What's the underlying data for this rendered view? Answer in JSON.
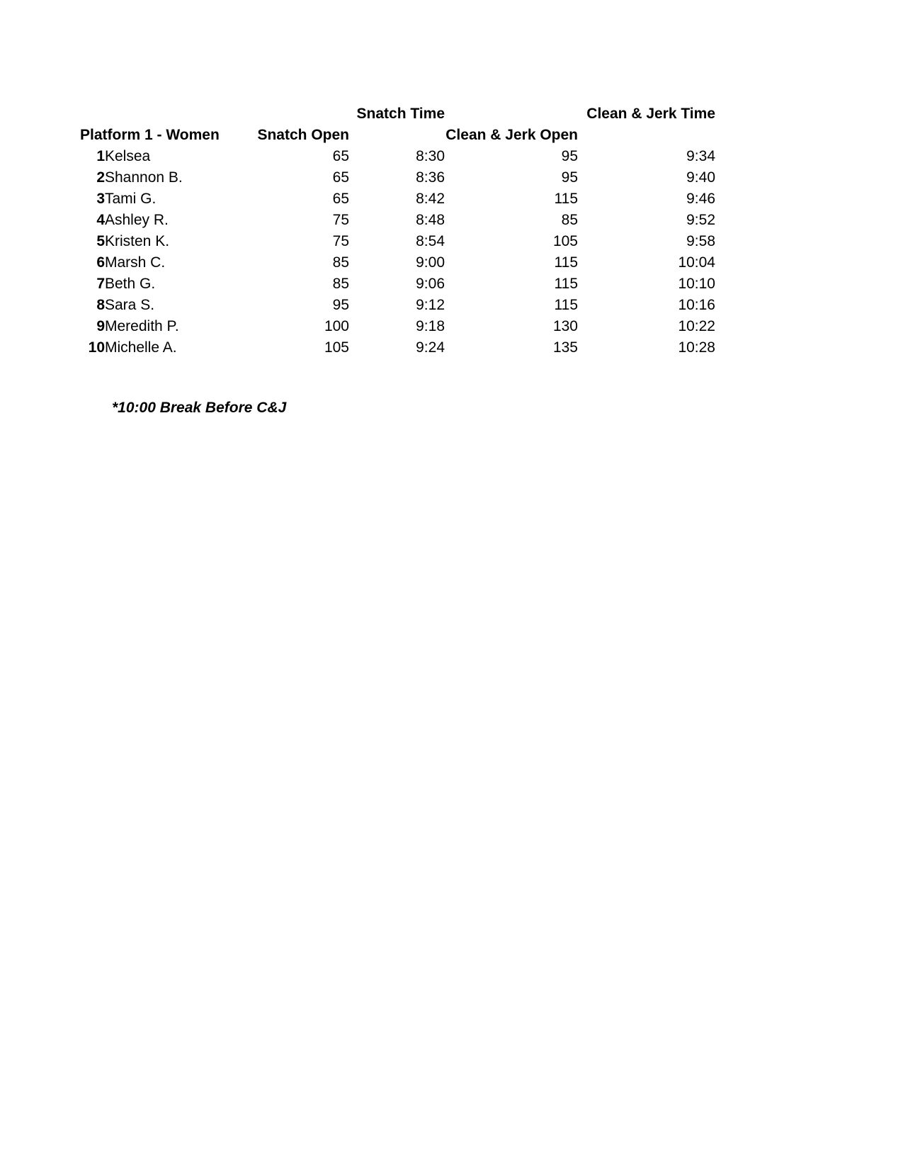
{
  "page": {
    "footnote": "*10:00 Break Before C&J"
  },
  "table": {
    "group_headers": {
      "snatch_time": "Snatch Time",
      "clean_jerk_time": "Clean & Jerk Time"
    },
    "column_headers": {
      "platform": "Platform 1 - Women",
      "snatch_open": "Snatch Open",
      "clean_jerk_open": "Clean & Jerk Open"
    },
    "rows": [
      {
        "num": "1",
        "name": "Kelsea",
        "snatch_open": "65",
        "snatch_time": "8:30",
        "cj_open": "95",
        "cj_time": "9:34"
      },
      {
        "num": "2",
        "name": "Shannon B.",
        "snatch_open": "65",
        "snatch_time": "8:36",
        "cj_open": "95",
        "cj_time": "9:40"
      },
      {
        "num": "3",
        "name": "Tami G.",
        "snatch_open": "65",
        "snatch_time": "8:42",
        "cj_open": "115",
        "cj_time": "9:46"
      },
      {
        "num": "4",
        "name": "Ashley R.",
        "snatch_open": "75",
        "snatch_time": "8:48",
        "cj_open": "85",
        "cj_time": "9:52"
      },
      {
        "num": "5",
        "name": "Kristen K.",
        "snatch_open": "75",
        "snatch_time": "8:54",
        "cj_open": "105",
        "cj_time": "9:58"
      },
      {
        "num": "6",
        "name": "Marsh C.",
        "snatch_open": "85",
        "snatch_time": "9:00",
        "cj_open": "115",
        "cj_time": "10:04"
      },
      {
        "num": "7",
        "name": "Beth G.",
        "snatch_open": "85",
        "snatch_time": "9:06",
        "cj_open": "115",
        "cj_time": "10:10"
      },
      {
        "num": "8",
        "name": "Sara S.",
        "snatch_open": "95",
        "snatch_time": "9:12",
        "cj_open": "115",
        "cj_time": "10:16"
      },
      {
        "num": "9",
        "name": "Meredith P.",
        "snatch_open": "100",
        "snatch_time": "9:18",
        "cj_open": "130",
        "cj_time": "10:22"
      },
      {
        "num": "10",
        "name": "Michelle A.",
        "snatch_open": "105",
        "snatch_time": "9:24",
        "cj_open": "135",
        "cj_time": "10:28"
      }
    ]
  }
}
